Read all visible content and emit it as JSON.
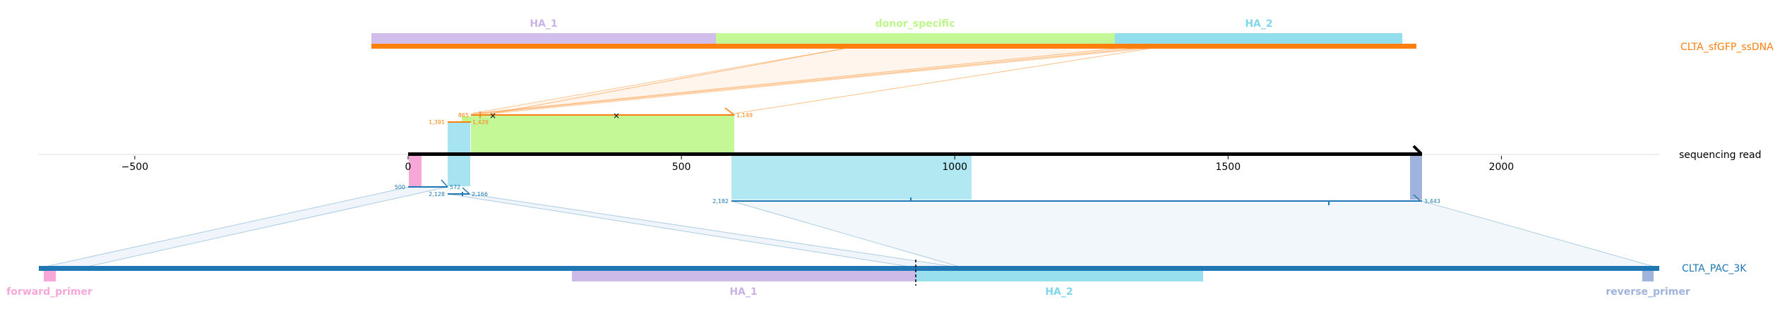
{
  "references": {
    "donor": {
      "name": "CLTA_sfGFP_ssDNA",
      "color": "#ff7f0e"
    },
    "read": {
      "name": "sequencing read",
      "color": "#000000"
    },
    "target": {
      "name": "CLTA_PAC_3K",
      "color": "#1f77b4"
    }
  },
  "donor_features": [
    {
      "name": "HA_1",
      "color": "#c9b3e6"
    },
    {
      "name": "donor_specific",
      "color": "#bef68a"
    },
    {
      "name": "HA_2",
      "color": "#7fd8ea"
    }
  ],
  "target_features": [
    {
      "name": "forward_primer",
      "color": "#f7a8d8"
    },
    {
      "name": "HA_1",
      "color": "#c9b3e6"
    },
    {
      "name": "HA_2",
      "color": "#7fd8ea"
    },
    {
      "name": "reverse_primer",
      "color": "#9fb3dc"
    }
  ],
  "read_axis": {
    "ticks": [
      "−500",
      "0",
      "500",
      "1000",
      "1500",
      "2000"
    ],
    "tick_values": [
      -500,
      0,
      500,
      1000,
      1500,
      2000
    ]
  },
  "alignments": {
    "donor": {
      "coords": [
        "1,391",
        "865",
        "1,429",
        "1,149"
      ]
    },
    "target": {
      "coords": [
        "500",
        "572",
        "2,128",
        "2,166",
        "2,182",
        "3,443"
      ]
    }
  }
}
